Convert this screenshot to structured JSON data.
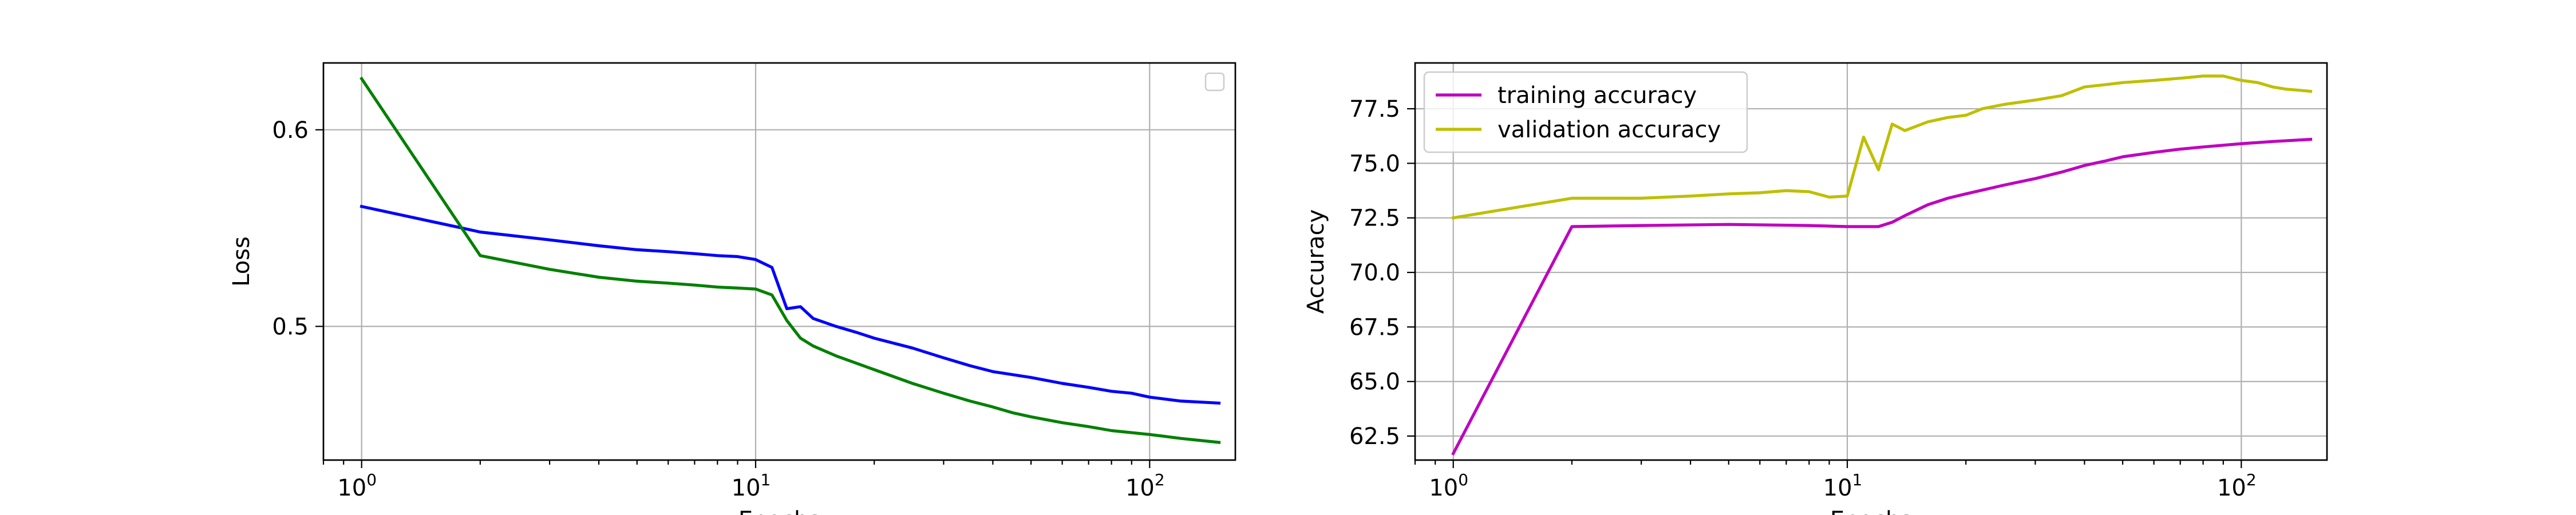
{
  "chart_data": [
    {
      "type": "line",
      "xscale": "log",
      "xlim": [
        0.8,
        165
      ],
      "ylim": [
        0.432,
        0.634
      ],
      "xlabel": "Epochs",
      "ylabel": "Loss",
      "x_ticks": [
        1,
        10,
        100
      ],
      "x_tick_labels": [
        [
          "10",
          "0"
        ],
        [
          "10",
          "1"
        ],
        [
          "10",
          "2"
        ]
      ],
      "y_ticks": [
        0.5,
        0.6
      ],
      "y_tick_labels": [
        "0.5",
        "0.6"
      ],
      "grid": true,
      "legend": {
        "placement": "upper right",
        "entries": []
      },
      "series": [
        {
          "color": "#0000ff",
          "points": [
            [
              1,
              0.561
            ],
            [
              1.8,
              0.55
            ],
            [
              2,
              0.548
            ],
            [
              3,
              0.544
            ],
            [
              4,
              0.541
            ],
            [
              5,
              0.539
            ],
            [
              6,
              0.538
            ],
            [
              7,
              0.537
            ],
            [
              8,
              0.536
            ],
            [
              9,
              0.5355
            ],
            [
              10,
              0.534
            ],
            [
              11,
              0.53
            ],
            [
              12,
              0.509
            ],
            [
              13,
              0.51
            ],
            [
              14,
              0.504
            ],
            [
              16,
              0.5
            ],
            [
              18,
              0.497
            ],
            [
              20,
              0.494
            ],
            [
              25,
              0.489
            ],
            [
              30,
              0.484
            ],
            [
              35,
              0.48
            ],
            [
              40,
              0.477
            ],
            [
              50,
              0.474
            ],
            [
              60,
              0.471
            ],
            [
              70,
              0.469
            ],
            [
              80,
              0.467
            ],
            [
              90,
              0.466
            ],
            [
              100,
              0.464
            ],
            [
              120,
              0.462
            ],
            [
              150,
              0.461
            ]
          ]
        },
        {
          "color": "#008000",
          "points": [
            [
              1,
              0.626
            ],
            [
              2,
              0.536
            ],
            [
              3,
              0.529
            ],
            [
              4,
              0.525
            ],
            [
              5,
              0.523
            ],
            [
              6,
              0.522
            ],
            [
              7,
              0.521
            ],
            [
              8,
              0.52
            ],
            [
              9,
              0.5195
            ],
            [
              10,
              0.519
            ],
            [
              11,
              0.516
            ],
            [
              12,
              0.503
            ],
            [
              13,
              0.494
            ],
            [
              14,
              0.49
            ],
            [
              16,
              0.485
            ],
            [
              20,
              0.478
            ],
            [
              25,
              0.471
            ],
            [
              30,
              0.466
            ],
            [
              35,
              0.462
            ],
            [
              40,
              0.459
            ],
            [
              45,
              0.456
            ],
            [
              50,
              0.454
            ],
            [
              60,
              0.451
            ],
            [
              70,
              0.449
            ],
            [
              80,
              0.447
            ],
            [
              100,
              0.445
            ],
            [
              120,
              0.443
            ],
            [
              150,
              0.441
            ]
          ]
        }
      ]
    },
    {
      "type": "line",
      "xscale": "log",
      "xlim": [
        0.8,
        165
      ],
      "ylim": [
        61.4,
        79.6
      ],
      "xlabel": "Epochs",
      "ylabel": "Accuracy",
      "x_ticks": [
        1,
        10,
        100
      ],
      "x_tick_labels": [
        [
          "10",
          "0"
        ],
        [
          "10",
          "1"
        ],
        [
          "10",
          "2"
        ]
      ],
      "y_ticks": [
        62.5,
        65.0,
        67.5,
        70.0,
        72.5,
        75.0,
        77.5
      ],
      "y_tick_labels": [
        "62.5",
        "65.0",
        "67.5",
        "70.0",
        "72.5",
        "75.0",
        "77.5"
      ],
      "grid": true,
      "legend": {
        "placement": "upper left",
        "entries": [
          {
            "label": "training accuracy",
            "color": "#bf00bf"
          },
          {
            "label": "validation accuracy",
            "color": "#bfbf00"
          }
        ]
      },
      "series": [
        {
          "name": "training accuracy",
          "color": "#bf00bf",
          "points": [
            [
              1,
              61.7
            ],
            [
              2,
              72.1
            ],
            [
              3,
              72.15
            ],
            [
              5,
              72.2
            ],
            [
              8,
              72.15
            ],
            [
              10,
              72.1
            ],
            [
              12,
              72.1
            ],
            [
              13,
              72.3
            ],
            [
              14,
              72.6
            ],
            [
              16,
              73.1
            ],
            [
              18,
              73.4
            ],
            [
              20,
              73.6
            ],
            [
              25,
              74.0
            ],
            [
              30,
              74.3
            ],
            [
              35,
              74.6
            ],
            [
              40,
              74.9
            ],
            [
              45,
              75.1
            ],
            [
              50,
              75.3
            ],
            [
              60,
              75.5
            ],
            [
              70,
              75.65
            ],
            [
              80,
              75.75
            ],
            [
              100,
              75.9
            ],
            [
              120,
              76.0
            ],
            [
              150,
              76.1
            ]
          ]
        },
        {
          "name": "validation accuracy",
          "color": "#bfbf00",
          "points": [
            [
              1,
              72.5
            ],
            [
              2,
              73.4
            ],
            [
              3,
              73.4
            ],
            [
              4,
              73.5
            ],
            [
              5,
              73.6
            ],
            [
              6,
              73.65
            ],
            [
              7,
              73.75
            ],
            [
              8,
              73.7
            ],
            [
              9,
              73.45
            ],
            [
              10,
              73.5
            ],
            [
              11,
              76.2
            ],
            [
              12,
              74.7
            ],
            [
              13,
              76.8
            ],
            [
              14,
              76.5
            ],
            [
              16,
              76.9
            ],
            [
              18,
              77.1
            ],
            [
              20,
              77.2
            ],
            [
              22,
              77.5
            ],
            [
              25,
              77.7
            ],
            [
              30,
              77.9
            ],
            [
              35,
              78.1
            ],
            [
              40,
              78.5
            ],
            [
              45,
              78.6
            ],
            [
              50,
              78.7
            ],
            [
              60,
              78.8
            ],
            [
              70,
              78.9
            ],
            [
              80,
              79.0
            ],
            [
              90,
              79.0
            ],
            [
              100,
              78.8
            ],
            [
              110,
              78.7
            ],
            [
              120,
              78.5
            ],
            [
              130,
              78.4
            ],
            [
              140,
              78.35
            ],
            [
              150,
              78.3
            ]
          ]
        }
      ]
    }
  ]
}
